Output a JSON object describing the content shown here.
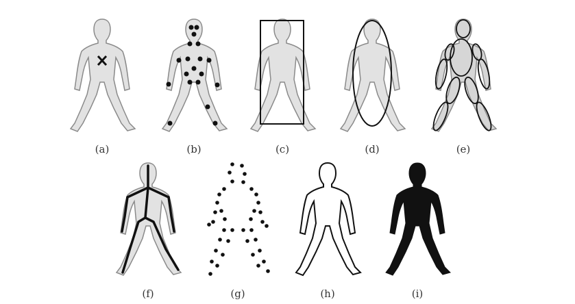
{
  "figure": {
    "panels": [
      {
        "id": "a",
        "label": "(a)",
        "representation": "centroid-cross"
      },
      {
        "id": "b",
        "label": "(b)",
        "representation": "body-joint-points"
      },
      {
        "id": "c",
        "label": "(c)",
        "representation": "bounding-box"
      },
      {
        "id": "d",
        "label": "(d)",
        "representation": "bounding-ellipse"
      },
      {
        "id": "e",
        "label": "(e)",
        "representation": "part-ellipses"
      },
      {
        "id": "f",
        "label": "(f)",
        "representation": "stick-skeleton"
      },
      {
        "id": "g",
        "label": "(g)",
        "representation": "contour-points"
      },
      {
        "id": "h",
        "label": "(h)",
        "representation": "silhouette-contour"
      },
      {
        "id": "i",
        "label": "(i)",
        "representation": "filled-silhouette"
      }
    ],
    "colors": {
      "figure_fill": "#e2e2e2",
      "figure_stroke": "#8a8a8a",
      "ink": "#111111",
      "caption": "#333333"
    }
  }
}
